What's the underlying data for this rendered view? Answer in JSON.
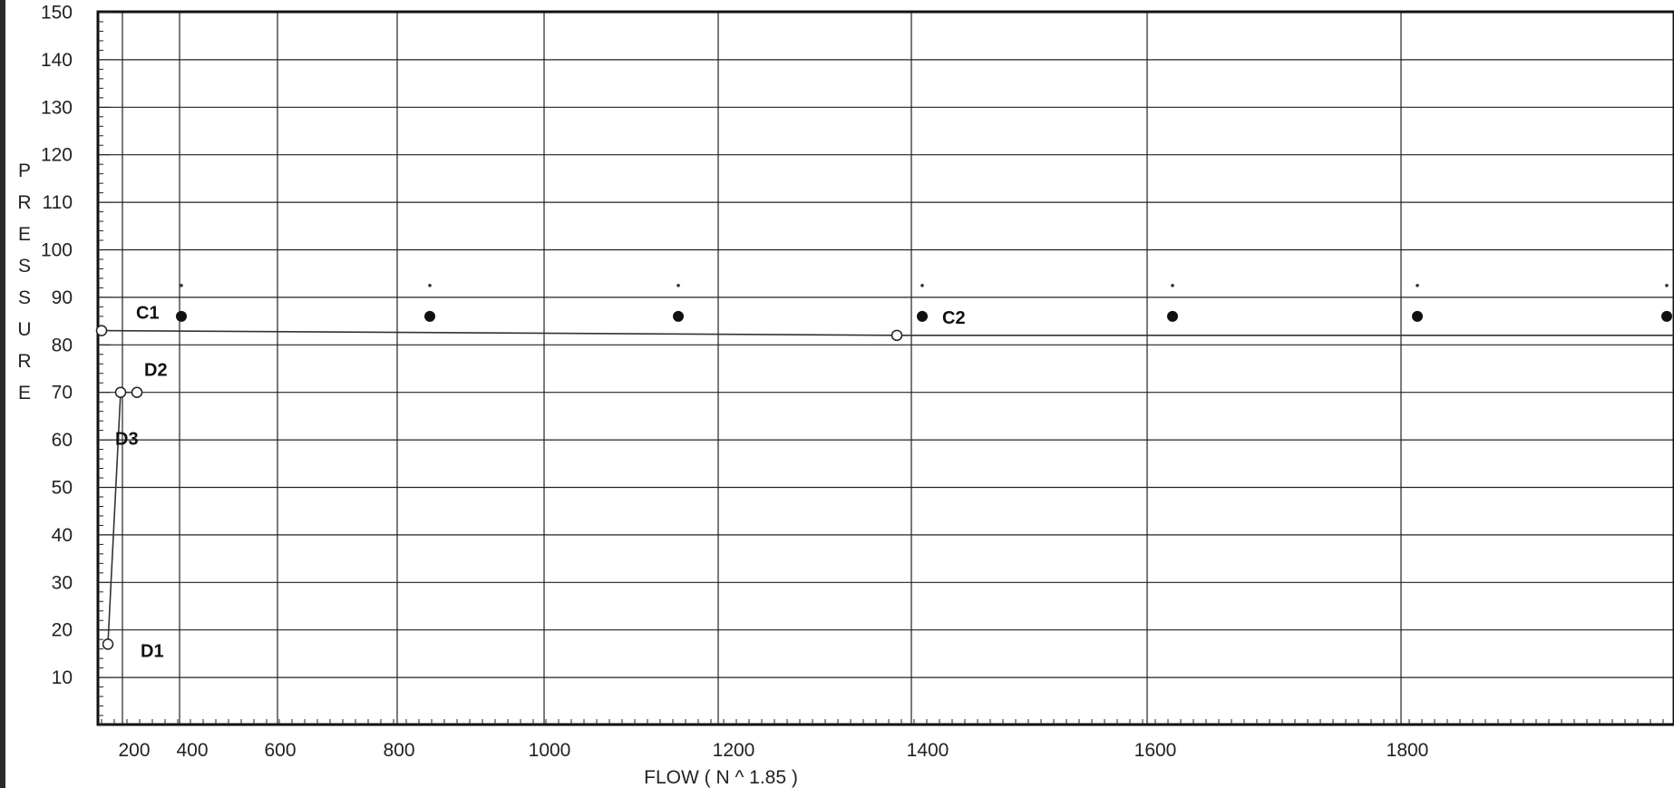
{
  "chart_data": {
    "type": "line",
    "title": "",
    "xlabel": "FLOW ( N ^ 1.85 )",
    "ylabel": "PRESSURE",
    "y_ticks": [
      "150",
      "140",
      "130",
      "120",
      "110",
      "100",
      "90",
      "80",
      "70",
      "60",
      "50",
      "40",
      "30",
      "20",
      "10"
    ],
    "x_ticks": [
      "200",
      "400",
      "600",
      "800",
      "1000",
      "1200",
      "1400",
      "1600",
      "1800"
    ],
    "ylim": [
      0,
      150
    ],
    "grid": true,
    "series": [
      {
        "name": "",
        "points": [
          {
            "x": 160,
            "y": 17,
            "label": "D1"
          },
          {
            "x": 200,
            "y": 70,
            "label": "D3"
          },
          {
            "x": 260,
            "y": 70,
            "label": "D2"
          }
        ]
      },
      {
        "name": "",
        "points": [
          {
            "x": 140,
            "y": 83,
            "label": "C1"
          },
          {
            "x": 1340,
            "y": 82,
            "label": "C2"
          },
          {
            "x": 2000,
            "y": 82,
            "label": ""
          }
        ]
      }
    ],
    "markers": [
      {
        "x": 390,
        "y": 86
      },
      {
        "x": 850,
        "y": 86
      },
      {
        "x": 1150,
        "y": 86
      },
      {
        "x": 1400,
        "y": 86
      },
      {
        "x": 1620,
        "y": 86
      },
      {
        "x": 1810,
        "y": 86
      },
      {
        "x": 1990,
        "y": 86
      }
    ]
  }
}
